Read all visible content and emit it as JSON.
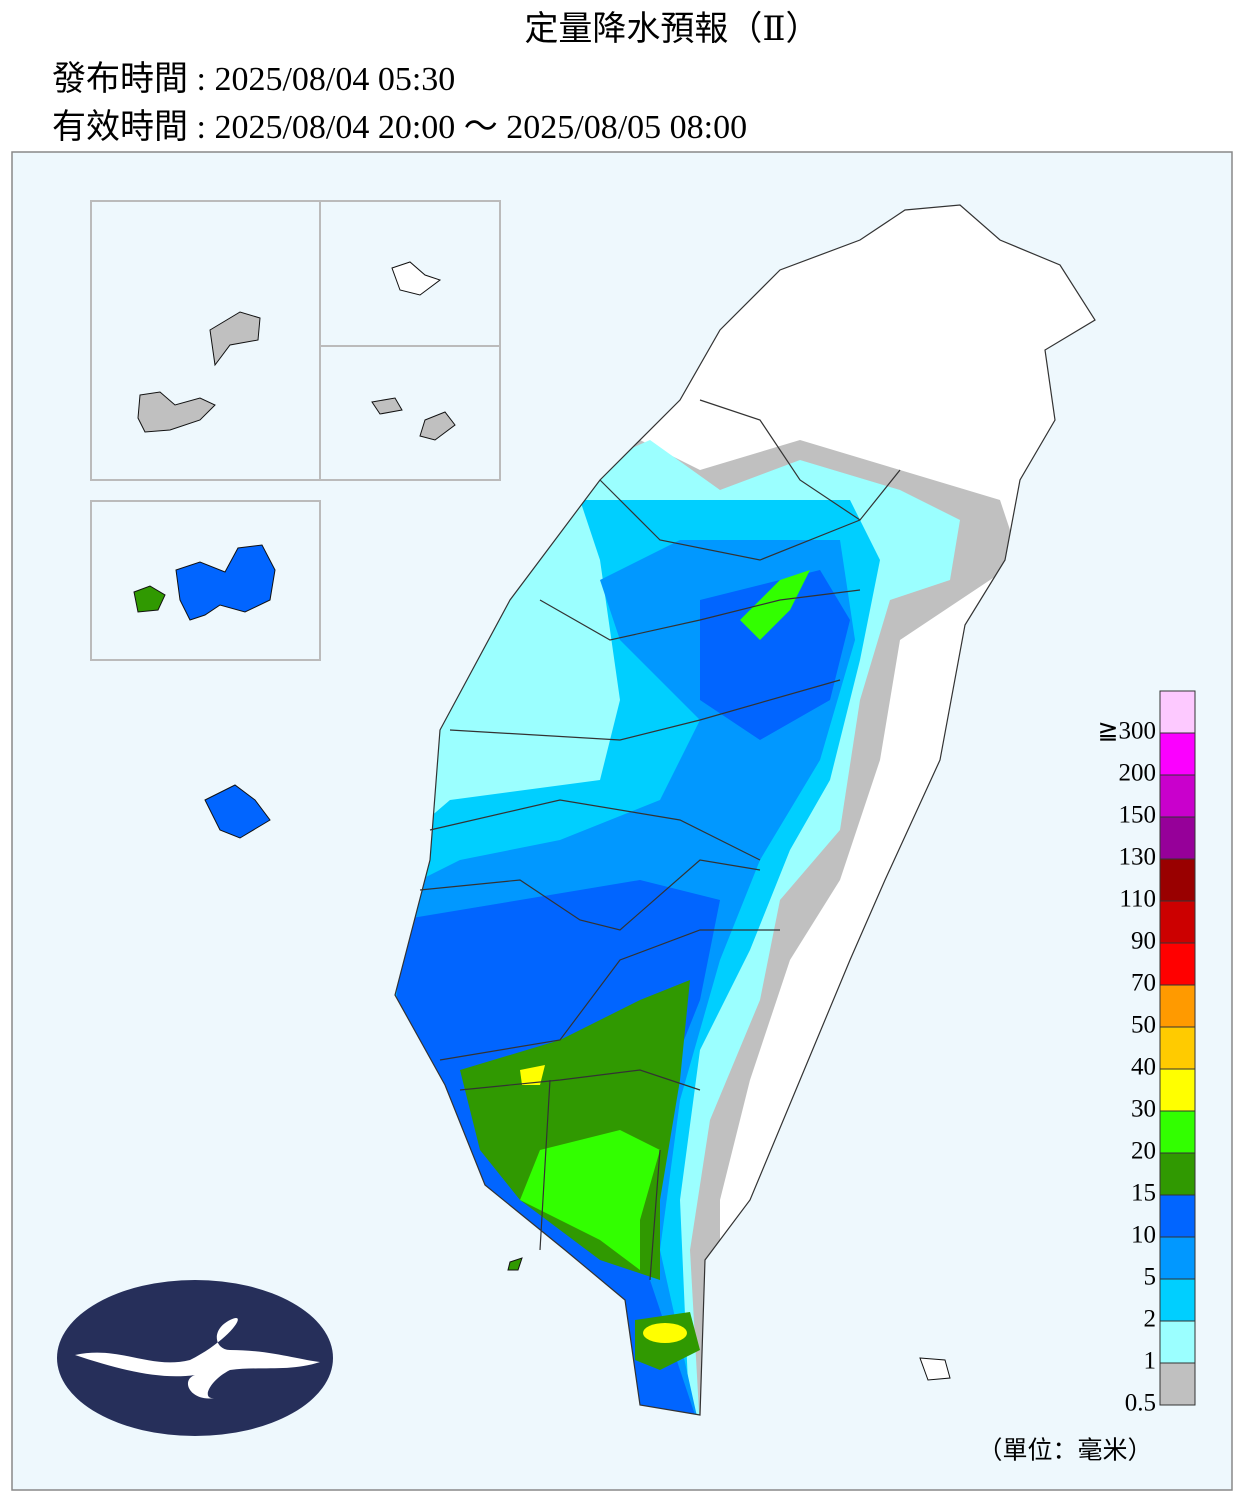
{
  "header": {
    "title": "定量降水預報（Ⅱ）",
    "issued": "發布時間 : 2025/08/04 05:30",
    "valid": "有效時間 : 2025/08/04 20:00 ～ 2025/08/05 08:00"
  },
  "legend": {
    "items": [
      {
        "label": "0.5",
        "color": "#c0c0c0"
      },
      {
        "label": "1",
        "color": "#9bffff"
      },
      {
        "label": "2",
        "color": "#00cfff"
      },
      {
        "label": "5",
        "color": "#0198ff"
      },
      {
        "label": "10",
        "color": "#0165ff"
      },
      {
        "label": "15",
        "color": "#309901"
      },
      {
        "label": "20",
        "color": "#32ff00"
      },
      {
        "label": "30",
        "color": "#ffff00"
      },
      {
        "label": "40",
        "color": "#ffcb00"
      },
      {
        "label": "50",
        "color": "#ff9a00"
      },
      {
        "label": "70",
        "color": "#ff0000"
      },
      {
        "label": "90",
        "color": "#cc0000"
      },
      {
        "label": "110",
        "color": "#990000"
      },
      {
        "label": "130",
        "color": "#960099"
      },
      {
        "label": "150",
        "color": "#c900cc"
      },
      {
        "label": "200",
        "color": "#fb00ff"
      },
      {
        "label": "≧300",
        "color": "#fdc9ff"
      }
    ],
    "unit": "（單位：毫米）"
  }
}
